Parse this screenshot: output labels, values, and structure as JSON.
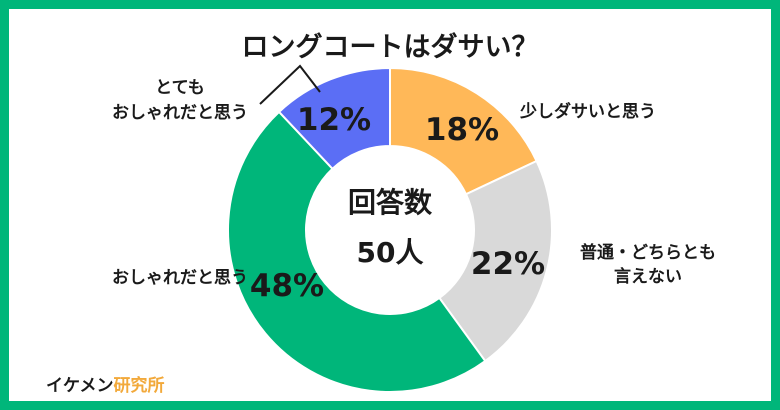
{
  "chart_data": {
    "type": "pie",
    "variant": "donut",
    "title": "ロングコートはダサい？",
    "center_label_line1": "回答数",
    "center_label_line2": "50人",
    "slices": [
      {
        "label": "少しダサいと思う",
        "value": 18,
        "value_label": "18%",
        "color": "#ffb858"
      },
      {
        "label_lines": [
          "普通・どちらとも",
          "言えない"
        ],
        "value": 22,
        "value_label": "22%",
        "color": "#d9d9d9"
      },
      {
        "label": "おしゃれだと思う",
        "value": 48,
        "value_label": "48%",
        "color": "#00b67a"
      },
      {
        "label_lines": [
          "とても",
          "おしゃれだと思う"
        ],
        "value": 12,
        "value_label": "12%",
        "color": "#5b6ef5"
      }
    ]
  },
  "brand": {
    "name_part1": "イケメン",
    "name_part2": "研究所",
    "color1": "#1a1a1a",
    "color2": "#f2a93b"
  },
  "frame_color": "#00b67a"
}
